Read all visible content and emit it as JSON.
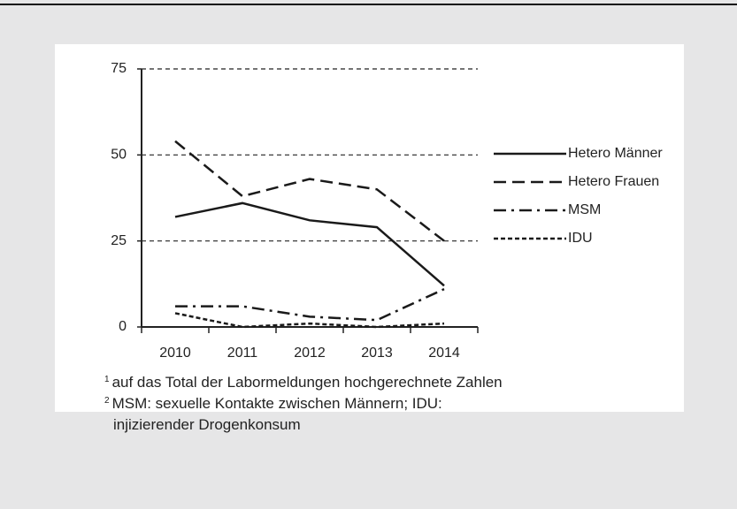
{
  "chart_data": {
    "type": "line",
    "categories": [
      "2010",
      "2011",
      "2012",
      "2013",
      "2014"
    ],
    "series": [
      {
        "name": "Hetero Männer",
        "color": "#1a1a1a",
        "dash": "solid",
        "values": [
          32,
          36,
          31,
          29,
          12
        ]
      },
      {
        "name": "Hetero Frauen",
        "color": "#1a1a1a",
        "dash": "dashed",
        "values": [
          54,
          38,
          43,
          40,
          25
        ]
      },
      {
        "name": "MSM",
        "color": "#1a1a1a",
        "dash": "dashdot",
        "values": [
          6,
          6,
          3,
          2,
          11
        ]
      },
      {
        "name": "IDU",
        "color": "#1a1a1a",
        "dash": "dotted",
        "values": [
          4,
          0,
          1,
          0,
          1
        ]
      }
    ],
    "ylim": [
      0,
      75
    ],
    "yticks": [
      0,
      25,
      50,
      75
    ],
    "grid": true,
    "legend": "right"
  },
  "footnotes": [
    {
      "marker": "1",
      "text": "auf das Total der Labormeldungen hochgerechnete Zahlen"
    },
    {
      "marker": "2",
      "text": "MSM: sexuelle Kontakte zwischen Männern; IDU: injizierender Drogenkonsum"
    }
  ]
}
